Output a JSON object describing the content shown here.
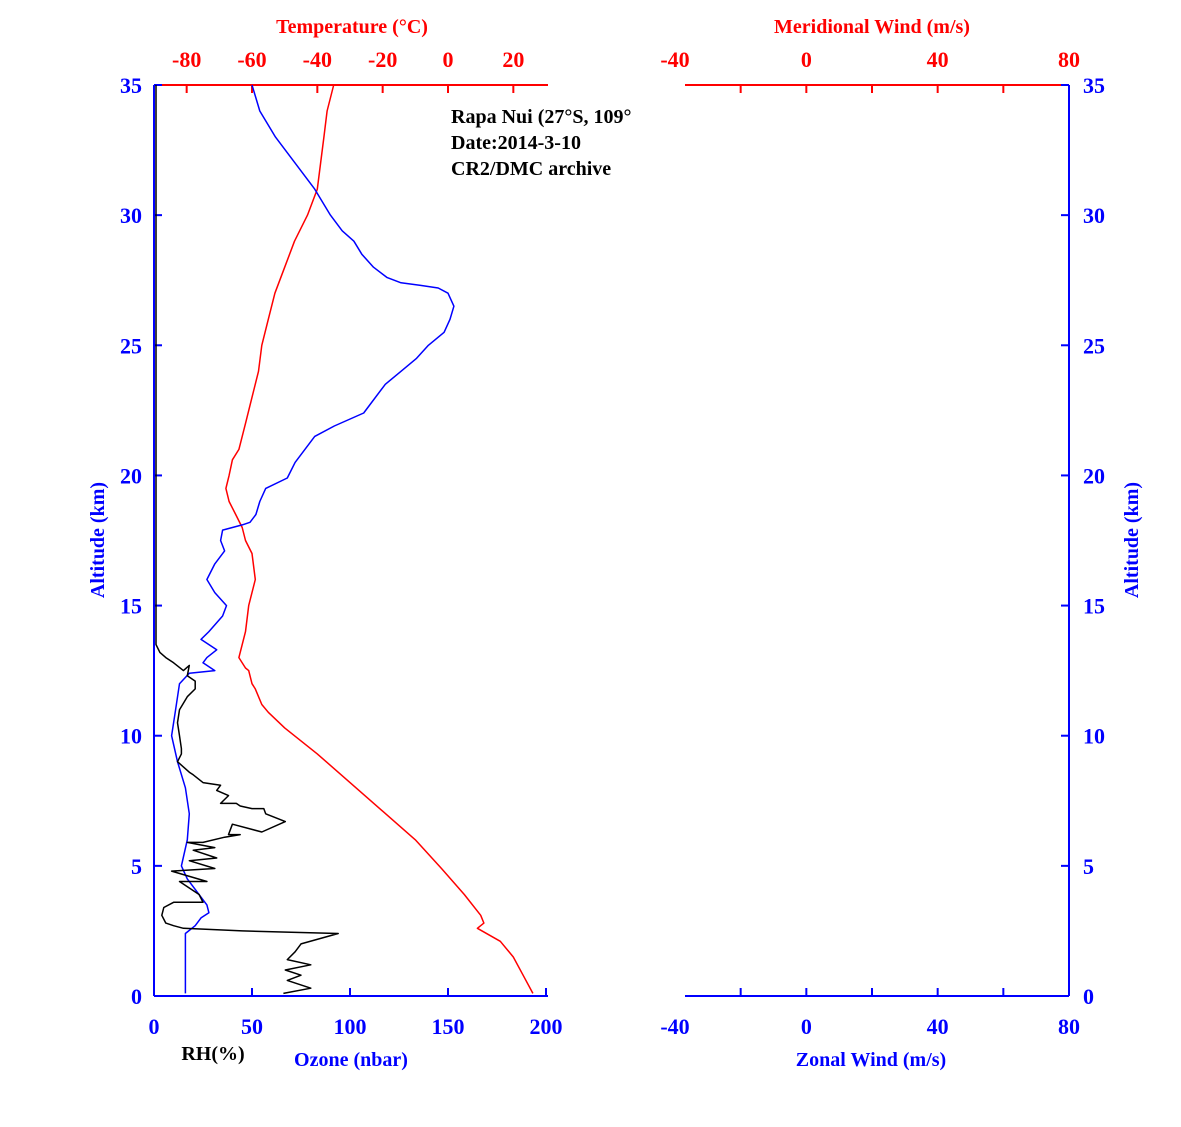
{
  "colors": {
    "temperature": "#ff0000",
    "ozone": "#0000ff",
    "rh": "#000000",
    "axis_left": "#0000ff",
    "axis_top": "#ff0000"
  },
  "chart_data": [
    {
      "type": "line",
      "title": "",
      "annotations": [
        "Rapa Nui (27°S, 109°",
        "Date:2014-3-10",
        "CR2/DMC archive"
      ],
      "ylabel": "Altitude (km)",
      "ylim": [
        0,
        35
      ],
      "yticks": [
        "0",
        "5",
        "10",
        "15",
        "20",
        "25",
        "30",
        "35"
      ],
      "x_bottom": {
        "label": "Ozone (nbar)",
        "sublabel": "RH(%)",
        "lim": [
          0,
          200
        ],
        "ticks": [
          "0",
          "50",
          "100",
          "150",
          "200"
        ]
      },
      "x_top": {
        "label": "Temperature (°C)",
        "lim": [
          -90,
          30
        ],
        "ticks": [
          "-80",
          "-60",
          "-40",
          "-20",
          "0",
          "20"
        ]
      },
      "series": [
        {
          "name": "Temperature",
          "axis": "top",
          "x": [
            -35,
            -37,
            -38,
            -39,
            -40,
            -43,
            -47,
            -50,
            -53,
            -55,
            -57,
            -58,
            -60,
            -62,
            -64,
            -66,
            -67,
            -68,
            -67,
            -65,
            -63,
            -62,
            -60,
            -59,
            -61,
            -62,
            -64,
            -62,
            -61,
            -60,
            -59,
            -57,
            -55,
            -50,
            -40,
            -30,
            -20,
            -10,
            -2,
            5,
            10,
            11,
            9,
            16,
            20,
            23,
            26
          ],
          "y": [
            35,
            34,
            33,
            32,
            31,
            30,
            29,
            28,
            27,
            26,
            25,
            24,
            23,
            22,
            21,
            20.6,
            20,
            19.5,
            19,
            18.5,
            18,
            17.5,
            17,
            16,
            15,
            14,
            13,
            12.6,
            12.5,
            12,
            11.8,
            11.2,
            10.9,
            10.3,
            9.3,
            8.2,
            7.1,
            6,
            4.9,
            3.9,
            3.1,
            2.8,
            2.6,
            2.1,
            1.5,
            0.8,
            0.1
          ]
        },
        {
          "name": "Ozone",
          "axis": "bottom",
          "x": [
            50,
            54,
            62,
            72,
            82,
            90,
            96,
            102,
            106,
            112,
            119,
            126,
            136,
            145,
            150,
            153,
            151,
            148,
            140,
            134,
            126,
            118,
            107,
            92,
            82,
            72,
            68,
            57,
            54,
            52,
            49,
            45,
            35,
            34,
            36,
            31,
            27,
            31,
            37,
            35,
            28,
            24,
            32,
            27,
            25,
            31,
            18,
            13,
            11,
            9,
            12,
            16,
            18,
            17,
            14,
            17,
            22,
            27,
            28,
            24,
            21,
            16,
            16,
            16
          ],
          "y": [
            35,
            34,
            33,
            32,
            31,
            30,
            29.4,
            29,
            28.5,
            28,
            27.6,
            27.4,
            27.3,
            27.2,
            27,
            26.5,
            26,
            25.5,
            25,
            24.5,
            24,
            23.5,
            22.4,
            21.9,
            21.5,
            20.5,
            19.9,
            19.5,
            19,
            18.5,
            18.2,
            18.1,
            17.9,
            17.5,
            17.1,
            16.6,
            16,
            15.5,
            15,
            14.6,
            14,
            13.7,
            13.3,
            13.0,
            12.8,
            12.5,
            12.4,
            12,
            11,
            10,
            9,
            8,
            7,
            6,
            5,
            4.5,
            4,
            3.5,
            3.2,
            3,
            2.7,
            2.4,
            1,
            0.1
          ]
        },
        {
          "name": "RH",
          "axis": "bottom",
          "x": [
            1,
            1,
            1,
            1,
            3,
            6,
            10,
            15,
            18,
            17,
            21,
            21,
            17,
            13,
            12,
            13,
            14,
            14,
            12,
            15,
            18,
            20,
            25,
            34,
            32,
            38,
            34,
            42,
            44,
            50,
            56,
            57,
            67,
            55,
            40,
            38,
            44,
            36,
            25,
            17,
            31,
            20,
            32,
            18,
            31,
            9,
            27,
            13,
            23,
            25,
            10,
            5,
            4,
            6,
            10,
            15,
            45,
            70,
            94,
            75,
            72,
            68,
            80,
            67,
            75,
            68,
            80,
            66
          ],
          "y": [
            35,
            25,
            15,
            13.5,
            13.2,
            13.0,
            12.8,
            12.5,
            12.7,
            12.3,
            12.1,
            11.8,
            11.5,
            11,
            10.5,
            10,
            9.5,
            9.3,
            9,
            8.8,
            8.6,
            8.5,
            8.2,
            8.1,
            7.9,
            7.7,
            7.4,
            7.4,
            7.3,
            7.2,
            7.2,
            7.0,
            6.7,
            6.3,
            6.6,
            6.2,
            6.2,
            6.1,
            5.9,
            5.9,
            5.7,
            5.6,
            5.3,
            5.2,
            4.9,
            4.8,
            4.4,
            4.4,
            3.9,
            3.6,
            3.6,
            3.4,
            3.1,
            2.8,
            2.7,
            2.6,
            2.5,
            2.45,
            2.4,
            2.0,
            1.7,
            1.4,
            1.2,
            1.0,
            0.8,
            0.6,
            0.3,
            0.1
          ]
        }
      ]
    },
    {
      "type": "line",
      "title": "",
      "ylabel": "Altitude (km)",
      "ylim": [
        0,
        35
      ],
      "yticks": [
        "0",
        "5",
        "10",
        "15",
        "20",
        "25",
        "30",
        "35"
      ],
      "x_bottom": {
        "label": "Zonal Wind (m/s)",
        "lim": [
          -40,
          80
        ],
        "ticks": [
          "-40",
          "0",
          "40",
          "80"
        ]
      },
      "x_top": {
        "label": "Meridional Wind (m/s)",
        "lim": [
          -40,
          80
        ],
        "ticks": [
          "-40",
          "0",
          "40",
          "80"
        ]
      },
      "series": []
    }
  ]
}
